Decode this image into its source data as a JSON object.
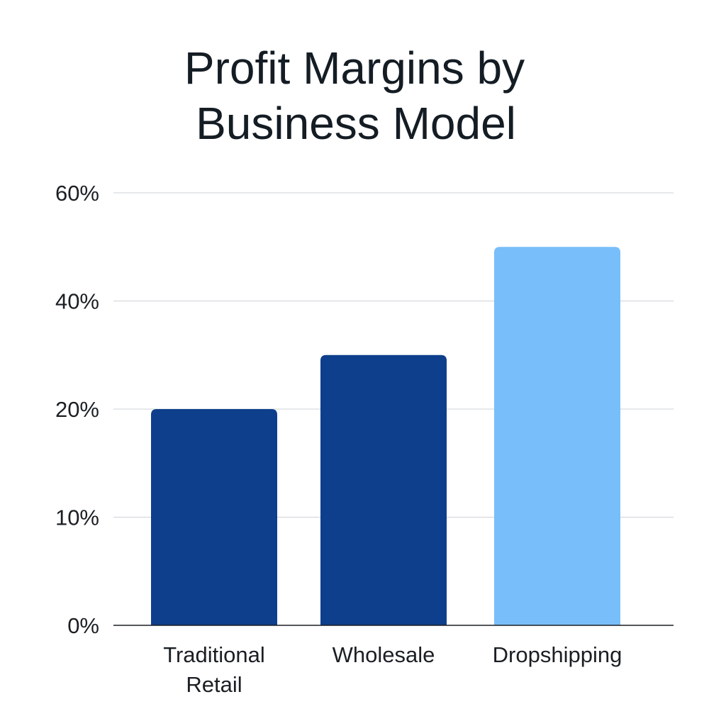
{
  "chart_data": {
    "type": "bar",
    "title": "Profit Margins by Business Model",
    "title_lines": [
      "Profit Margins by",
      "Business Model"
    ],
    "xlabel": "",
    "ylabel": "",
    "categories": [
      "Traditional Retail",
      "Wholesale",
      "Dropshipping"
    ],
    "category_label_lines": [
      [
        "Traditional",
        "Retail"
      ],
      [
        "Wholesale"
      ],
      [
        "Dropshipping"
      ]
    ],
    "values": [
      20,
      30,
      50
    ],
    "y_ticks": [
      "0%",
      "10%",
      "20%",
      "40%",
      "60%"
    ],
    "grid": true,
    "legend": "none",
    "colors": [
      "#0e3f8c",
      "#0e3f8c",
      "#78befa"
    ],
    "colors_meaning": "first two bars dark navy, last bar light sky blue"
  }
}
